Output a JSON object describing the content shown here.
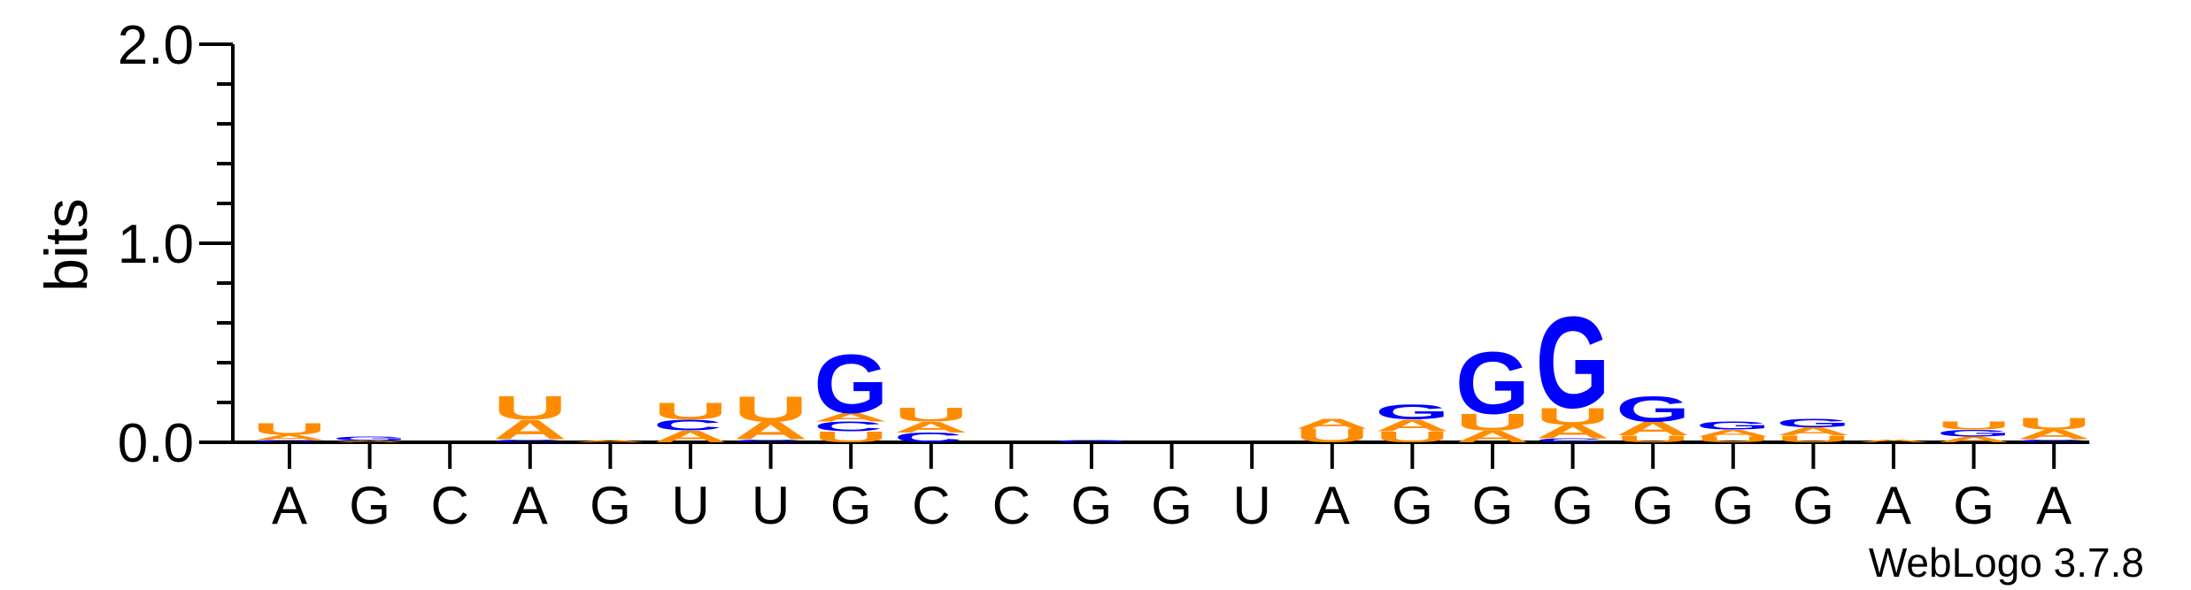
{
  "chart_data": {
    "type": "sequence-logo",
    "ylabel": "bits",
    "ylim": [
      0,
      2.0
    ],
    "y_ticks": [
      "0.0",
      "1.0",
      "2.0"
    ],
    "y_tick_values": [
      0,
      1,
      2
    ],
    "credit": "WebLogo 3.7.8",
    "colors": {
      "A": "#ff8c00",
      "U": "#ff8c00",
      "G": "#0000ff",
      "C": "#0000ff"
    },
    "x_labels": [
      "A",
      "G",
      "C",
      "A",
      "G",
      "U",
      "U",
      "G",
      "C",
      "C",
      "G",
      "G",
      "U",
      "A",
      "G",
      "G",
      "G",
      "G",
      "G",
      "G",
      "A",
      "G",
      "A"
    ],
    "positions": [
      {
        "stack": [
          {
            "l": "C",
            "h": 0.012
          },
          {
            "l": "A",
            "h": 0.025
          },
          {
            "l": "U",
            "h": 0.06
          }
        ]
      },
      {
        "stack": [
          {
            "l": "A",
            "h": 0.008
          },
          {
            "l": "G",
            "h": 0.02
          }
        ]
      },
      {
        "stack": []
      },
      {
        "stack": [
          {
            "l": "C",
            "h": 0.015
          },
          {
            "l": "A",
            "h": 0.1
          },
          {
            "l": "U",
            "h": 0.12
          }
        ]
      },
      {
        "stack": [
          {
            "l": "A",
            "h": 0.01
          }
        ]
      },
      {
        "stack": [
          {
            "l": "A",
            "h": 0.06
          },
          {
            "l": "C",
            "h": 0.055
          },
          {
            "l": "U",
            "h": 0.085
          }
        ]
      },
      {
        "stack": [
          {
            "l": "C",
            "h": 0.015
          },
          {
            "l": "A",
            "h": 0.09
          },
          {
            "l": "U",
            "h": 0.13
          }
        ]
      },
      {
        "stack": [
          {
            "l": "U",
            "h": 0.055
          },
          {
            "l": "C",
            "h": 0.05
          },
          {
            "l": "A",
            "h": 0.045
          },
          {
            "l": "G",
            "h": 0.3
          }
        ]
      },
      {
        "stack": [
          {
            "l": "C",
            "h": 0.05
          },
          {
            "l": "A",
            "h": 0.055
          },
          {
            "l": "U",
            "h": 0.07
          }
        ]
      },
      {
        "stack": []
      },
      {
        "stack": [
          {
            "l": "G",
            "h": 0.012
          }
        ]
      },
      {
        "stack": []
      },
      {
        "stack": []
      },
      {
        "stack": [
          {
            "l": "U",
            "h": 0.07
          },
          {
            "l": "A",
            "h": 0.05
          }
        ]
      },
      {
        "stack": [
          {
            "l": "U",
            "h": 0.055
          },
          {
            "l": "A",
            "h": 0.06
          },
          {
            "l": "G",
            "h": 0.075
          }
        ]
      },
      {
        "stack": [
          {
            "l": "A",
            "h": 0.06
          },
          {
            "l": "U",
            "h": 0.085
          },
          {
            "l": "G",
            "h": 0.32
          }
        ]
      },
      {
        "stack": [
          {
            "l": "C",
            "h": 0.02
          },
          {
            "l": "A",
            "h": 0.07
          },
          {
            "l": "U",
            "h": 0.085
          },
          {
            "l": "G",
            "h": 0.47
          }
        ]
      },
      {
        "stack": [
          {
            "l": "U",
            "h": 0.035
          },
          {
            "l": "A",
            "h": 0.07
          },
          {
            "l": "G",
            "h": 0.13
          }
        ]
      },
      {
        "stack": [
          {
            "l": "U",
            "h": 0.03
          },
          {
            "l": "A",
            "h": 0.035
          },
          {
            "l": "G",
            "h": 0.04
          }
        ]
      },
      {
        "stack": [
          {
            "l": "U",
            "h": 0.035
          },
          {
            "l": "A",
            "h": 0.04
          },
          {
            "l": "G",
            "h": 0.045
          }
        ]
      },
      {
        "stack": [
          {
            "l": "A",
            "h": 0.015
          }
        ]
      },
      {
        "stack": [
          {
            "l": "A",
            "h": 0.03
          },
          {
            "l": "G",
            "h": 0.035
          },
          {
            "l": "U",
            "h": 0.04
          }
        ]
      },
      {
        "stack": [
          {
            "l": "C",
            "h": 0.015
          },
          {
            "l": "A",
            "h": 0.05
          },
          {
            "l": "U",
            "h": 0.06
          }
        ]
      }
    ]
  }
}
